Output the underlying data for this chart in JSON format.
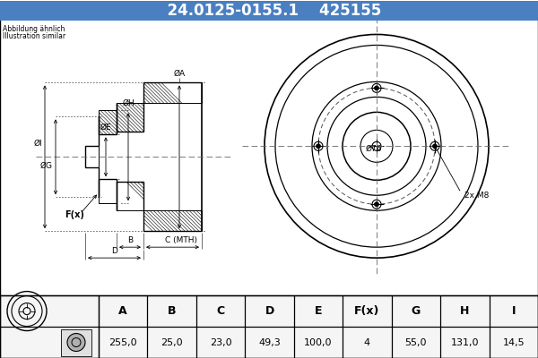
{
  "title_part_number": "24.0125-0155.1",
  "title_ref_number": "425155",
  "title_bg_color": "#4a7fc1",
  "title_text_color": "#ffffff",
  "subtitle_line1": "Abbildung ähnlich",
  "subtitle_line2": "Illustration similar",
  "table_headers": [
    "A",
    "B",
    "C",
    "D",
    "E",
    "F(x)",
    "G",
    "H",
    "I"
  ],
  "table_values": [
    "255,0",
    "25,0",
    "23,0",
    "49,3",
    "100,0",
    "4",
    "55,0",
    "131,0",
    "14,5"
  ],
  "bg_color": "#ffffff",
  "line_color": "#000000",
  "hatch_color": "#000000",
  "dim_color": "#000000",
  "centerline_color": "#666666"
}
